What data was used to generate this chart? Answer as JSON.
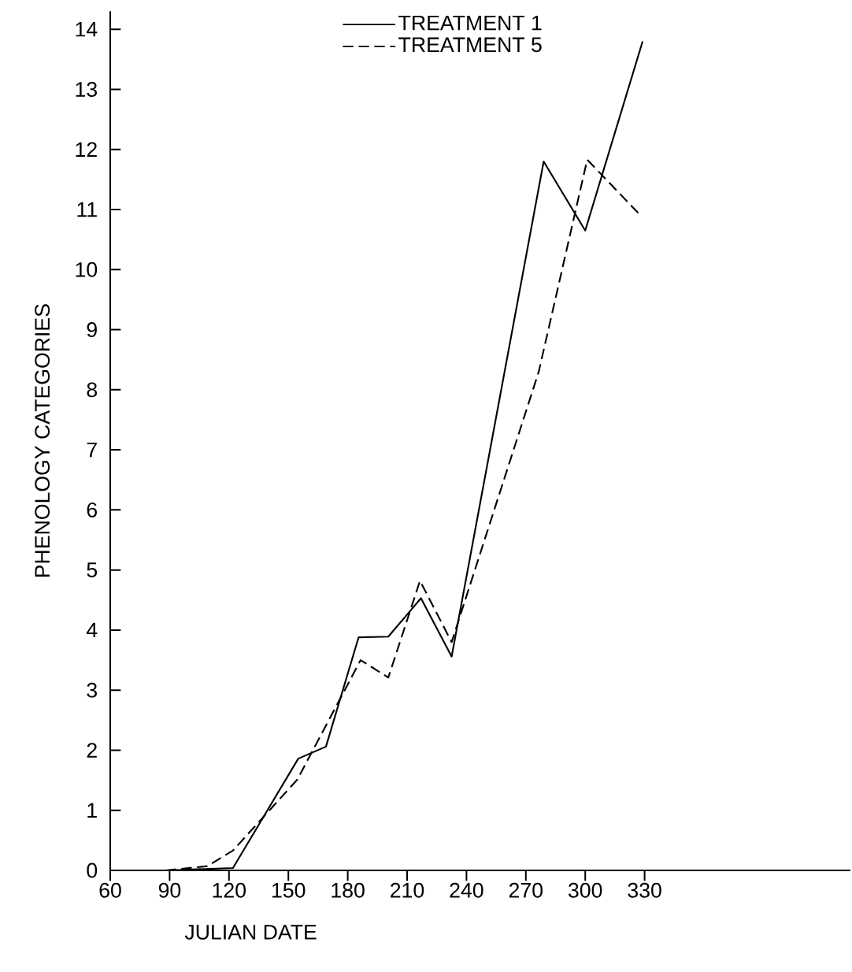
{
  "chart_data": {
    "type": "line",
    "xlabel": "JULIAN DATE",
    "ylabel": "PHENOLOGY CATEGORIES",
    "xlim": [
      60,
      434
    ],
    "ylim": [
      0,
      14.3
    ],
    "xticks": [
      60,
      90,
      120,
      150,
      180,
      210,
      240,
      270,
      300,
      330
    ],
    "yticks": [
      0,
      1,
      2,
      3,
      4,
      5,
      6,
      7,
      8,
      9,
      10,
      11,
      12,
      13,
      14
    ],
    "grid": false,
    "legend": "top",
    "marker": "none",
    "series": [
      {
        "name": "TREATMENT 1",
        "color": "#000000",
        "line_style": "solid",
        "x": [
          89,
          122,
          155,
          169,
          185.5,
          200.5,
          217,
          232.5,
          279,
          300,
          329
        ],
        "values": [
          0,
          0.04,
          1.86,
          2.06,
          3.88,
          3.89,
          4.53,
          3.56,
          11.8,
          10.65,
          13.8
        ]
      },
      {
        "name": "TREATMENT 5",
        "color": "#000000",
        "line_style": "dashed",
        "x": [
          88,
          109,
          122,
          154.5,
          186.5,
          200.5,
          216.5,
          232.5,
          276.5,
          301,
          328
        ],
        "values": [
          0,
          0.07,
          0.33,
          1.51,
          3.5,
          3.21,
          4.82,
          3.8,
          8.3,
          11.83,
          10.9
        ]
      }
    ]
  }
}
